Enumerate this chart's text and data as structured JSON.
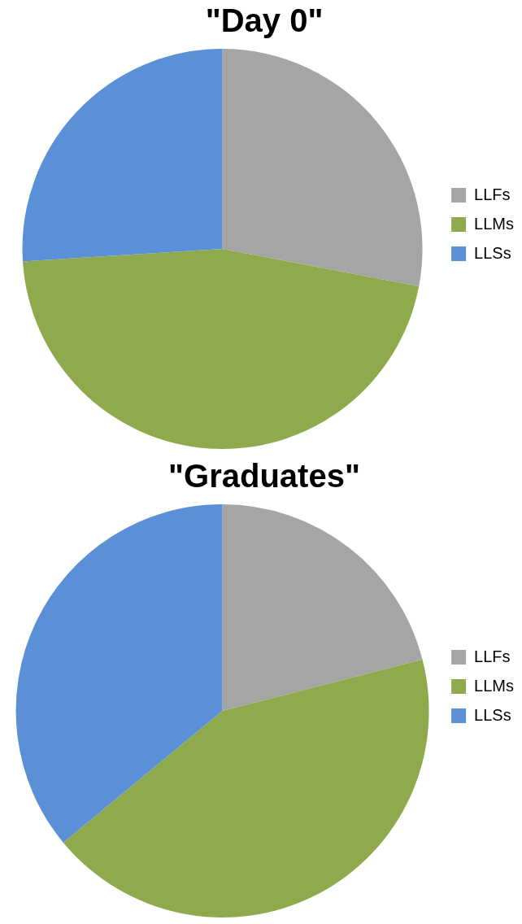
{
  "chart_data": [
    {
      "type": "pie",
      "title": "\"Day 0\"",
      "categories": [
        "LLFs",
        "LLMs",
        "LLSs"
      ],
      "values": [
        28,
        46,
        26
      ],
      "colors": [
        "#a5a5a5",
        "#8faa4c",
        "#5b8fd6"
      ],
      "legend": "right"
    },
    {
      "type": "pie",
      "title": "\"Graduates\"",
      "categories": [
        "LLFs",
        "LLMs",
        "LLSs"
      ],
      "values": [
        21,
        43,
        36
      ],
      "colors": [
        "#a5a5a5",
        "#8faa4c",
        "#5b8fd6"
      ],
      "legend": "right"
    }
  ]
}
